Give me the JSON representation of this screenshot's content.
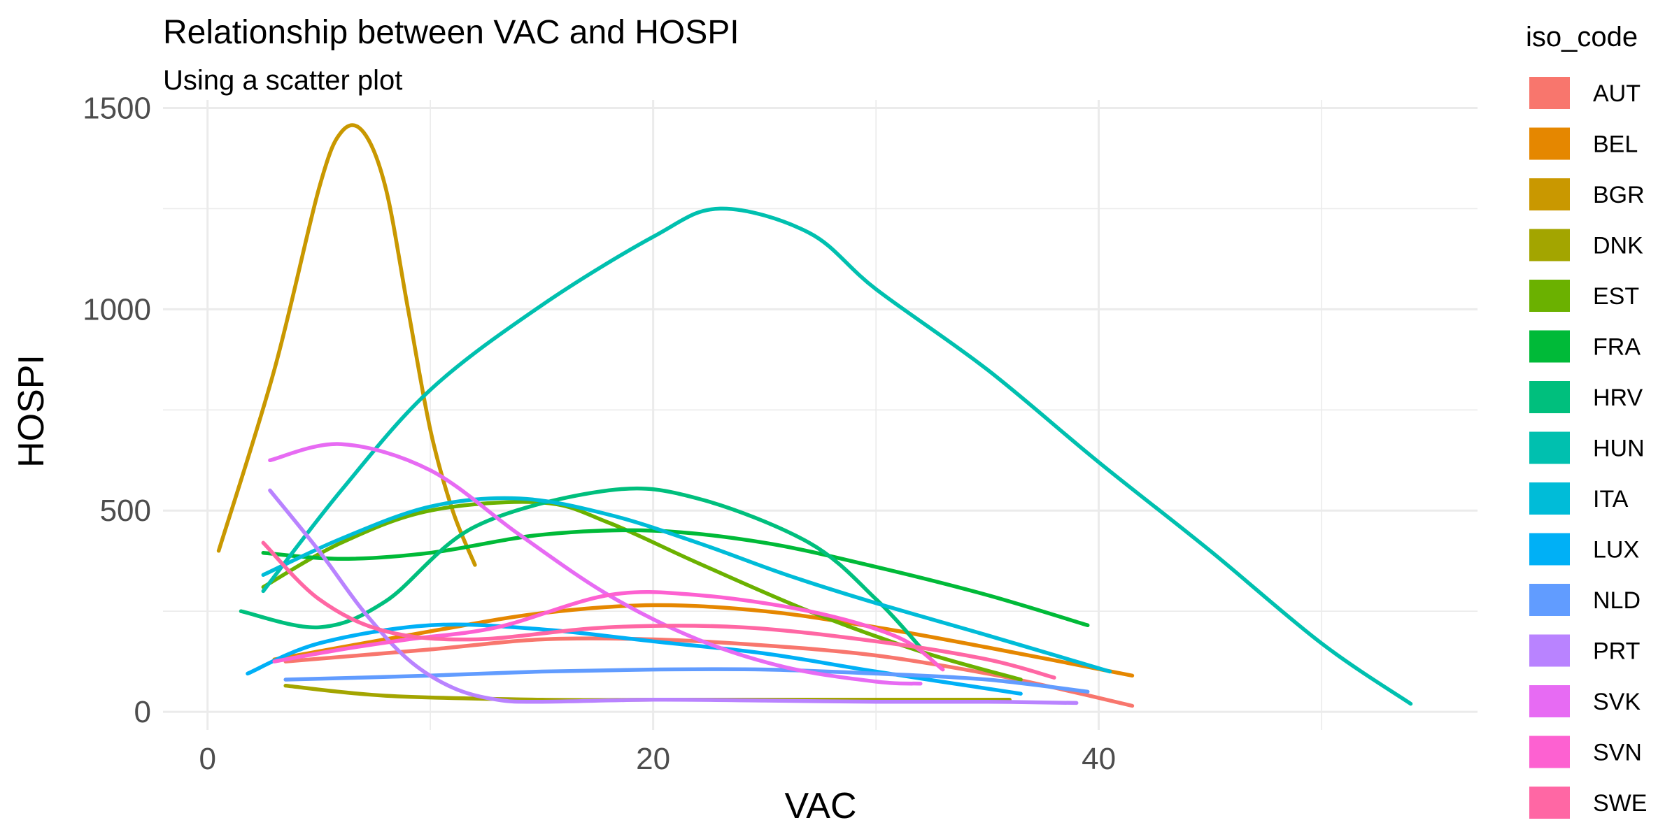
{
  "chart_data": {
    "type": "line",
    "title": "Relationship between VAC and HOSPI",
    "subtitle": "Using a scatter plot",
    "xlabel": "VAC",
    "ylabel": "HOSPI",
    "xlim": [
      -2,
      57
    ],
    "ylim": [
      -45,
      1520
    ],
    "x_ticks": [
      0,
      20,
      40
    ],
    "y_ticks": [
      0,
      500,
      1000,
      1500
    ],
    "x_minor": [
      10,
      30,
      50
    ],
    "y_minor": [
      250,
      750,
      1250
    ],
    "grid": true,
    "legend_title": "iso_code",
    "legend_position": "right",
    "series": [
      {
        "name": "AUT",
        "color": "#F8766D",
        "x": [
          3.5,
          10,
          15,
          20,
          25,
          30,
          35,
          38,
          41.5
        ],
        "y": [
          125,
          155,
          180,
          180,
          165,
          140,
          95,
          60,
          15
        ]
      },
      {
        "name": "BEL",
        "color": "#E58700",
        "x": [
          3,
          10,
          15,
          20,
          25,
          30,
          35,
          41.5
        ],
        "y": [
          130,
          200,
          245,
          265,
          250,
          210,
          160,
          90
        ]
      },
      {
        "name": "BGR",
        "color": "#C99800",
        "x": [
          0.5,
          3,
          5,
          6,
          7,
          8,
          9,
          10,
          11,
          12
        ],
        "y": [
          400,
          850,
          1300,
          1440,
          1440,
          1300,
          1000,
          700,
          500,
          365
        ]
      },
      {
        "name": "DNK",
        "color": "#A3A500",
        "x": [
          3.5,
          8,
          15,
          20,
          25,
          30,
          36
        ],
        "y": [
          65,
          40,
          30,
          30,
          30,
          30,
          30
        ]
      },
      {
        "name": "EST",
        "color": "#6BB100",
        "x": [
          2.5,
          6,
          10,
          15,
          18,
          22,
          27,
          32,
          36.5
        ],
        "y": [
          310,
          420,
          500,
          520,
          470,
          370,
          250,
          150,
          80
        ]
      },
      {
        "name": "FRA",
        "color": "#00BA38",
        "x": [
          2.5,
          6,
          10,
          15,
          20,
          25,
          30,
          35,
          39.5
        ],
        "y": [
          395,
          380,
          395,
          440,
          450,
          420,
          360,
          290,
          215
        ]
      },
      {
        "name": "HRV",
        "color": "#00BF7D",
        "x": [
          1.5,
          5,
          8,
          12,
          18,
          22,
          27,
          30,
          32
        ],
        "y": [
          250,
          210,
          275,
          460,
          550,
          530,
          420,
          280,
          160
        ]
      },
      {
        "name": "HUN",
        "color": "#00C0AF",
        "x": [
          2.5,
          6,
          10,
          15,
          20,
          23,
          27,
          30,
          35,
          40,
          45,
          50,
          54
        ],
        "y": [
          300,
          550,
          800,
          1010,
          1180,
          1250,
          1190,
          1050,
          850,
          620,
          400,
          170,
          20
        ]
      },
      {
        "name": "ITA",
        "color": "#00BCD8",
        "x": [
          2.5,
          6,
          10,
          14,
          18,
          22,
          26,
          30,
          35,
          40.5
        ],
        "y": [
          340,
          430,
          510,
          530,
          490,
          420,
          340,
          270,
          190,
          100
        ]
      },
      {
        "name": "LUX",
        "color": "#00B0F6",
        "x": [
          1.8,
          5,
          10,
          15,
          20,
          25,
          30,
          36.5
        ],
        "y": [
          95,
          170,
          215,
          205,
          175,
          145,
          100,
          45
        ]
      },
      {
        "name": "NLD",
        "color": "#619CFF",
        "x": [
          3.5,
          10,
          15,
          20,
          25,
          30,
          35,
          39.5
        ],
        "y": [
          80,
          90,
          100,
          105,
          105,
          95,
          80,
          50
        ]
      },
      {
        "name": "PRT",
        "color": "#B983FF",
        "x": [
          2.8,
          5,
          7,
          9,
          11,
          13,
          15,
          20,
          25,
          30,
          35,
          39
        ],
        "y": [
          550,
          400,
          250,
          130,
          60,
          30,
          25,
          30,
          28,
          25,
          25,
          22
        ]
      },
      {
        "name": "SVK",
        "color": "#E76BF3",
        "x": [
          2.8,
          6,
          10,
          14,
          18,
          22,
          26,
          30,
          32
        ],
        "y": [
          625,
          665,
          600,
          440,
          290,
          180,
          110,
          75,
          70
        ]
      },
      {
        "name": "SVN",
        "color": "#FD61D1",
        "x": [
          3,
          6,
          9,
          13,
          18,
          22,
          27,
          31,
          33
        ],
        "y": [
          125,
          155,
          180,
          210,
          290,
          290,
          250,
          185,
          105
        ]
      },
      {
        "name": "SWE",
        "color": "#FF67A4",
        "x": [
          2.5,
          5,
          8,
          12,
          18,
          24,
          30,
          35,
          38
        ],
        "y": [
          420,
          280,
          200,
          180,
          210,
          210,
          175,
          130,
          85
        ]
      }
    ]
  }
}
